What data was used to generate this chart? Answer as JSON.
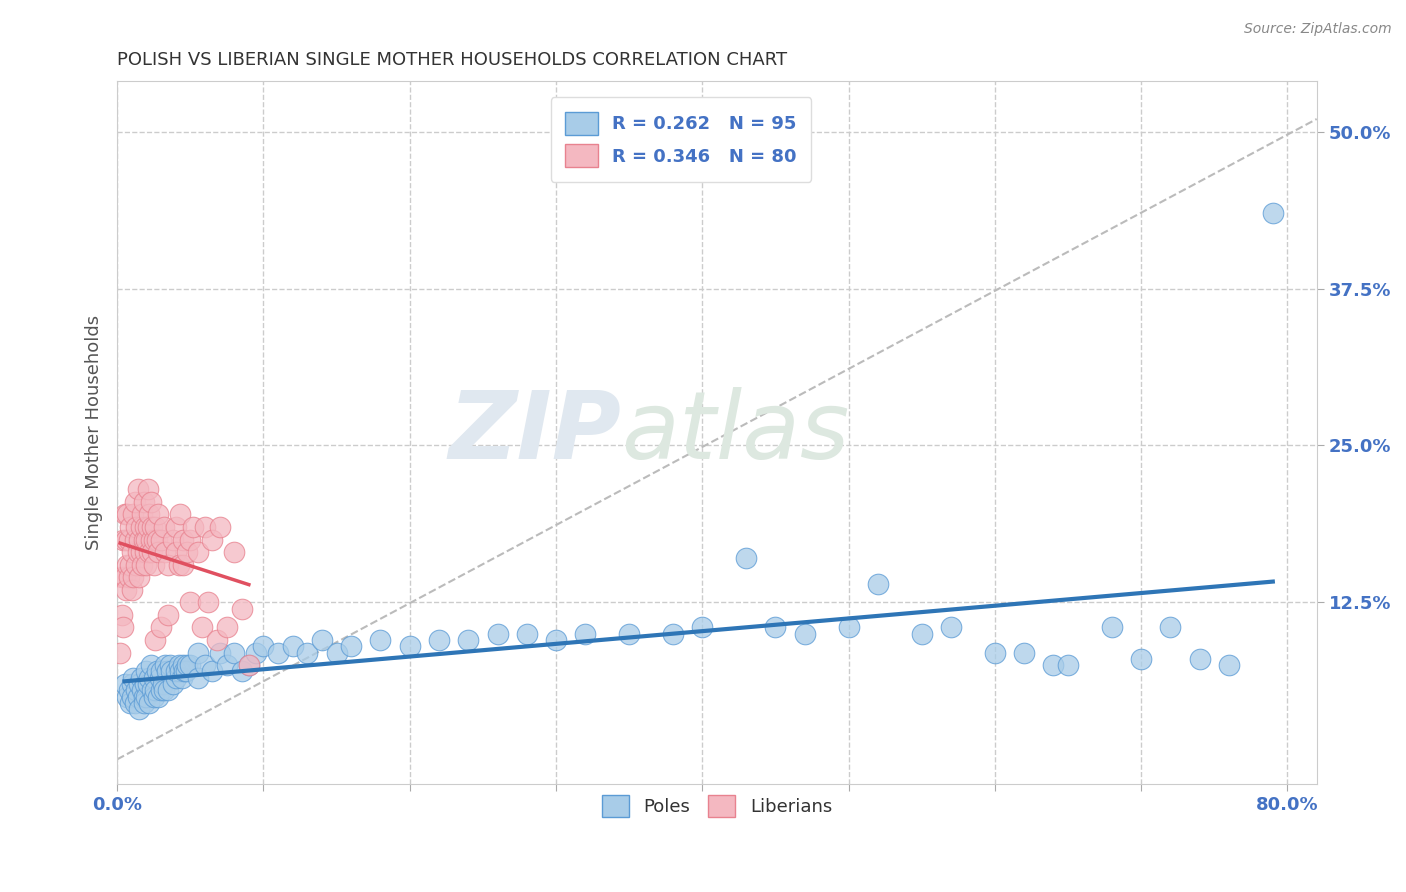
{
  "title": "POLISH VS LIBERIAN SINGLE MOTHER HOUSEHOLDS CORRELATION CHART",
  "source_text": "Source: ZipAtlas.com",
  "ylabel": "Single Mother Households",
  "xlim": [
    0.0,
    0.82
  ],
  "ylim": [
    -0.02,
    0.54
  ],
  "xtick_positions": [
    0.0,
    0.1,
    0.2,
    0.3,
    0.4,
    0.5,
    0.6,
    0.7,
    0.8
  ],
  "xticklabels": [
    "0.0%",
    "",
    "",
    "",
    "",
    "",
    "",
    "",
    "80.0%"
  ],
  "ytick_positions": [
    0.125,
    0.25,
    0.375,
    0.5
  ],
  "ytick_labels": [
    "12.5%",
    "25.0%",
    "37.5%",
    "50.0%"
  ],
  "legend_r1": "R = 0.262",
  "legend_n1": "N = 95",
  "legend_r2": "R = 0.346",
  "legend_n2": "N = 80",
  "poles_color": "#a8cce8",
  "poles_edge_color": "#5b9bd5",
  "liberians_color": "#f4b8c1",
  "liberians_edge_color": "#e8828f",
  "trend_poles_color": "#2e75b6",
  "trend_liberians_color": "#e05060",
  "background_color": "#ffffff",
  "grid_color": "#cccccc",
  "watermark_zip": "ZIP",
  "watermark_atlas": "atlas",
  "title_color": "#333333",
  "axis_label_color": "#555555",
  "tick_label_color": "#4472c4",
  "source_color": "#888888",
  "poles_data": [
    [
      0.005,
      0.06
    ],
    [
      0.007,
      0.05
    ],
    [
      0.008,
      0.055
    ],
    [
      0.009,
      0.045
    ],
    [
      0.01,
      0.06
    ],
    [
      0.01,
      0.05
    ],
    [
      0.011,
      0.065
    ],
    [
      0.012,
      0.045
    ],
    [
      0.013,
      0.055
    ],
    [
      0.014,
      0.05
    ],
    [
      0.015,
      0.06
    ],
    [
      0.015,
      0.04
    ],
    [
      0.016,
      0.065
    ],
    [
      0.017,
      0.055
    ],
    [
      0.018,
      0.05
    ],
    [
      0.018,
      0.045
    ],
    [
      0.019,
      0.06
    ],
    [
      0.02,
      0.07
    ],
    [
      0.02,
      0.05
    ],
    [
      0.021,
      0.06
    ],
    [
      0.022,
      0.065
    ],
    [
      0.022,
      0.045
    ],
    [
      0.023,
      0.075
    ],
    [
      0.024,
      0.055
    ],
    [
      0.025,
      0.065
    ],
    [
      0.025,
      0.05
    ],
    [
      0.026,
      0.055
    ],
    [
      0.027,
      0.07
    ],
    [
      0.028,
      0.05
    ],
    [
      0.029,
      0.065
    ],
    [
      0.03,
      0.055
    ],
    [
      0.03,
      0.07
    ],
    [
      0.031,
      0.06
    ],
    [
      0.032,
      0.055
    ],
    [
      0.033,
      0.075
    ],
    [
      0.034,
      0.07
    ],
    [
      0.035,
      0.055
    ],
    [
      0.036,
      0.075
    ],
    [
      0.037,
      0.07
    ],
    [
      0.038,
      0.06
    ],
    [
      0.04,
      0.065
    ],
    [
      0.04,
      0.07
    ],
    [
      0.042,
      0.075
    ],
    [
      0.043,
      0.07
    ],
    [
      0.044,
      0.065
    ],
    [
      0.045,
      0.075
    ],
    [
      0.046,
      0.07
    ],
    [
      0.047,
      0.07
    ],
    [
      0.048,
      0.075
    ],
    [
      0.05,
      0.075
    ],
    [
      0.055,
      0.065
    ],
    [
      0.055,
      0.085
    ],
    [
      0.06,
      0.075
    ],
    [
      0.065,
      0.07
    ],
    [
      0.07,
      0.085
    ],
    [
      0.075,
      0.075
    ],
    [
      0.08,
      0.085
    ],
    [
      0.085,
      0.07
    ],
    [
      0.09,
      0.075
    ],
    [
      0.095,
      0.085
    ],
    [
      0.1,
      0.09
    ],
    [
      0.11,
      0.085
    ],
    [
      0.12,
      0.09
    ],
    [
      0.13,
      0.085
    ],
    [
      0.14,
      0.095
    ],
    [
      0.15,
      0.085
    ],
    [
      0.16,
      0.09
    ],
    [
      0.18,
      0.095
    ],
    [
      0.2,
      0.09
    ],
    [
      0.22,
      0.095
    ],
    [
      0.24,
      0.095
    ],
    [
      0.26,
      0.1
    ],
    [
      0.28,
      0.1
    ],
    [
      0.3,
      0.095
    ],
    [
      0.32,
      0.1
    ],
    [
      0.35,
      0.1
    ],
    [
      0.38,
      0.1
    ],
    [
      0.4,
      0.105
    ],
    [
      0.43,
      0.16
    ],
    [
      0.45,
      0.105
    ],
    [
      0.47,
      0.1
    ],
    [
      0.5,
      0.105
    ],
    [
      0.52,
      0.14
    ],
    [
      0.55,
      0.1
    ],
    [
      0.57,
      0.105
    ],
    [
      0.6,
      0.085
    ],
    [
      0.62,
      0.085
    ],
    [
      0.64,
      0.075
    ],
    [
      0.65,
      0.075
    ],
    [
      0.68,
      0.105
    ],
    [
      0.7,
      0.08
    ],
    [
      0.72,
      0.105
    ],
    [
      0.74,
      0.08
    ],
    [
      0.76,
      0.075
    ],
    [
      0.79,
      0.435
    ]
  ],
  "liberians_data": [
    [
      0.002,
      0.085
    ],
    [
      0.003,
      0.115
    ],
    [
      0.003,
      0.145
    ],
    [
      0.004,
      0.175
    ],
    [
      0.004,
      0.105
    ],
    [
      0.005,
      0.195
    ],
    [
      0.005,
      0.145
    ],
    [
      0.006,
      0.135
    ],
    [
      0.006,
      0.175
    ],
    [
      0.007,
      0.155
    ],
    [
      0.007,
      0.195
    ],
    [
      0.008,
      0.145
    ],
    [
      0.008,
      0.175
    ],
    [
      0.009,
      0.155
    ],
    [
      0.009,
      0.185
    ],
    [
      0.01,
      0.135
    ],
    [
      0.01,
      0.165
    ],
    [
      0.011,
      0.195
    ],
    [
      0.011,
      0.145
    ],
    [
      0.012,
      0.175
    ],
    [
      0.012,
      0.205
    ],
    [
      0.013,
      0.155
    ],
    [
      0.013,
      0.185
    ],
    [
      0.014,
      0.165
    ],
    [
      0.014,
      0.215
    ],
    [
      0.015,
      0.175
    ],
    [
      0.015,
      0.145
    ],
    [
      0.016,
      0.185
    ],
    [
      0.016,
      0.165
    ],
    [
      0.017,
      0.195
    ],
    [
      0.017,
      0.155
    ],
    [
      0.018,
      0.175
    ],
    [
      0.018,
      0.205
    ],
    [
      0.019,
      0.165
    ],
    [
      0.019,
      0.185
    ],
    [
      0.02,
      0.175
    ],
    [
      0.02,
      0.155
    ],
    [
      0.021,
      0.185
    ],
    [
      0.021,
      0.215
    ],
    [
      0.022,
      0.165
    ],
    [
      0.022,
      0.195
    ],
    [
      0.023,
      0.175
    ],
    [
      0.023,
      0.205
    ],
    [
      0.024,
      0.165
    ],
    [
      0.024,
      0.185
    ],
    [
      0.025,
      0.175
    ],
    [
      0.025,
      0.155
    ],
    [
      0.026,
      0.095
    ],
    [
      0.026,
      0.185
    ],
    [
      0.027,
      0.175
    ],
    [
      0.028,
      0.165
    ],
    [
      0.028,
      0.195
    ],
    [
      0.03,
      0.175
    ],
    [
      0.03,
      0.105
    ],
    [
      0.032,
      0.185
    ],
    [
      0.033,
      0.165
    ],
    [
      0.035,
      0.155
    ],
    [
      0.035,
      0.115
    ],
    [
      0.038,
      0.175
    ],
    [
      0.04,
      0.165
    ],
    [
      0.04,
      0.185
    ],
    [
      0.042,
      0.155
    ],
    [
      0.043,
      0.195
    ],
    [
      0.045,
      0.155
    ],
    [
      0.045,
      0.175
    ],
    [
      0.048,
      0.165
    ],
    [
      0.05,
      0.175
    ],
    [
      0.05,
      0.125
    ],
    [
      0.052,
      0.185
    ],
    [
      0.055,
      0.165
    ],
    [
      0.058,
      0.105
    ],
    [
      0.06,
      0.185
    ],
    [
      0.062,
      0.125
    ],
    [
      0.065,
      0.175
    ],
    [
      0.068,
      0.095
    ],
    [
      0.07,
      0.185
    ],
    [
      0.075,
      0.105
    ],
    [
      0.08,
      0.165
    ],
    [
      0.085,
      0.12
    ],
    [
      0.09,
      0.075
    ]
  ]
}
